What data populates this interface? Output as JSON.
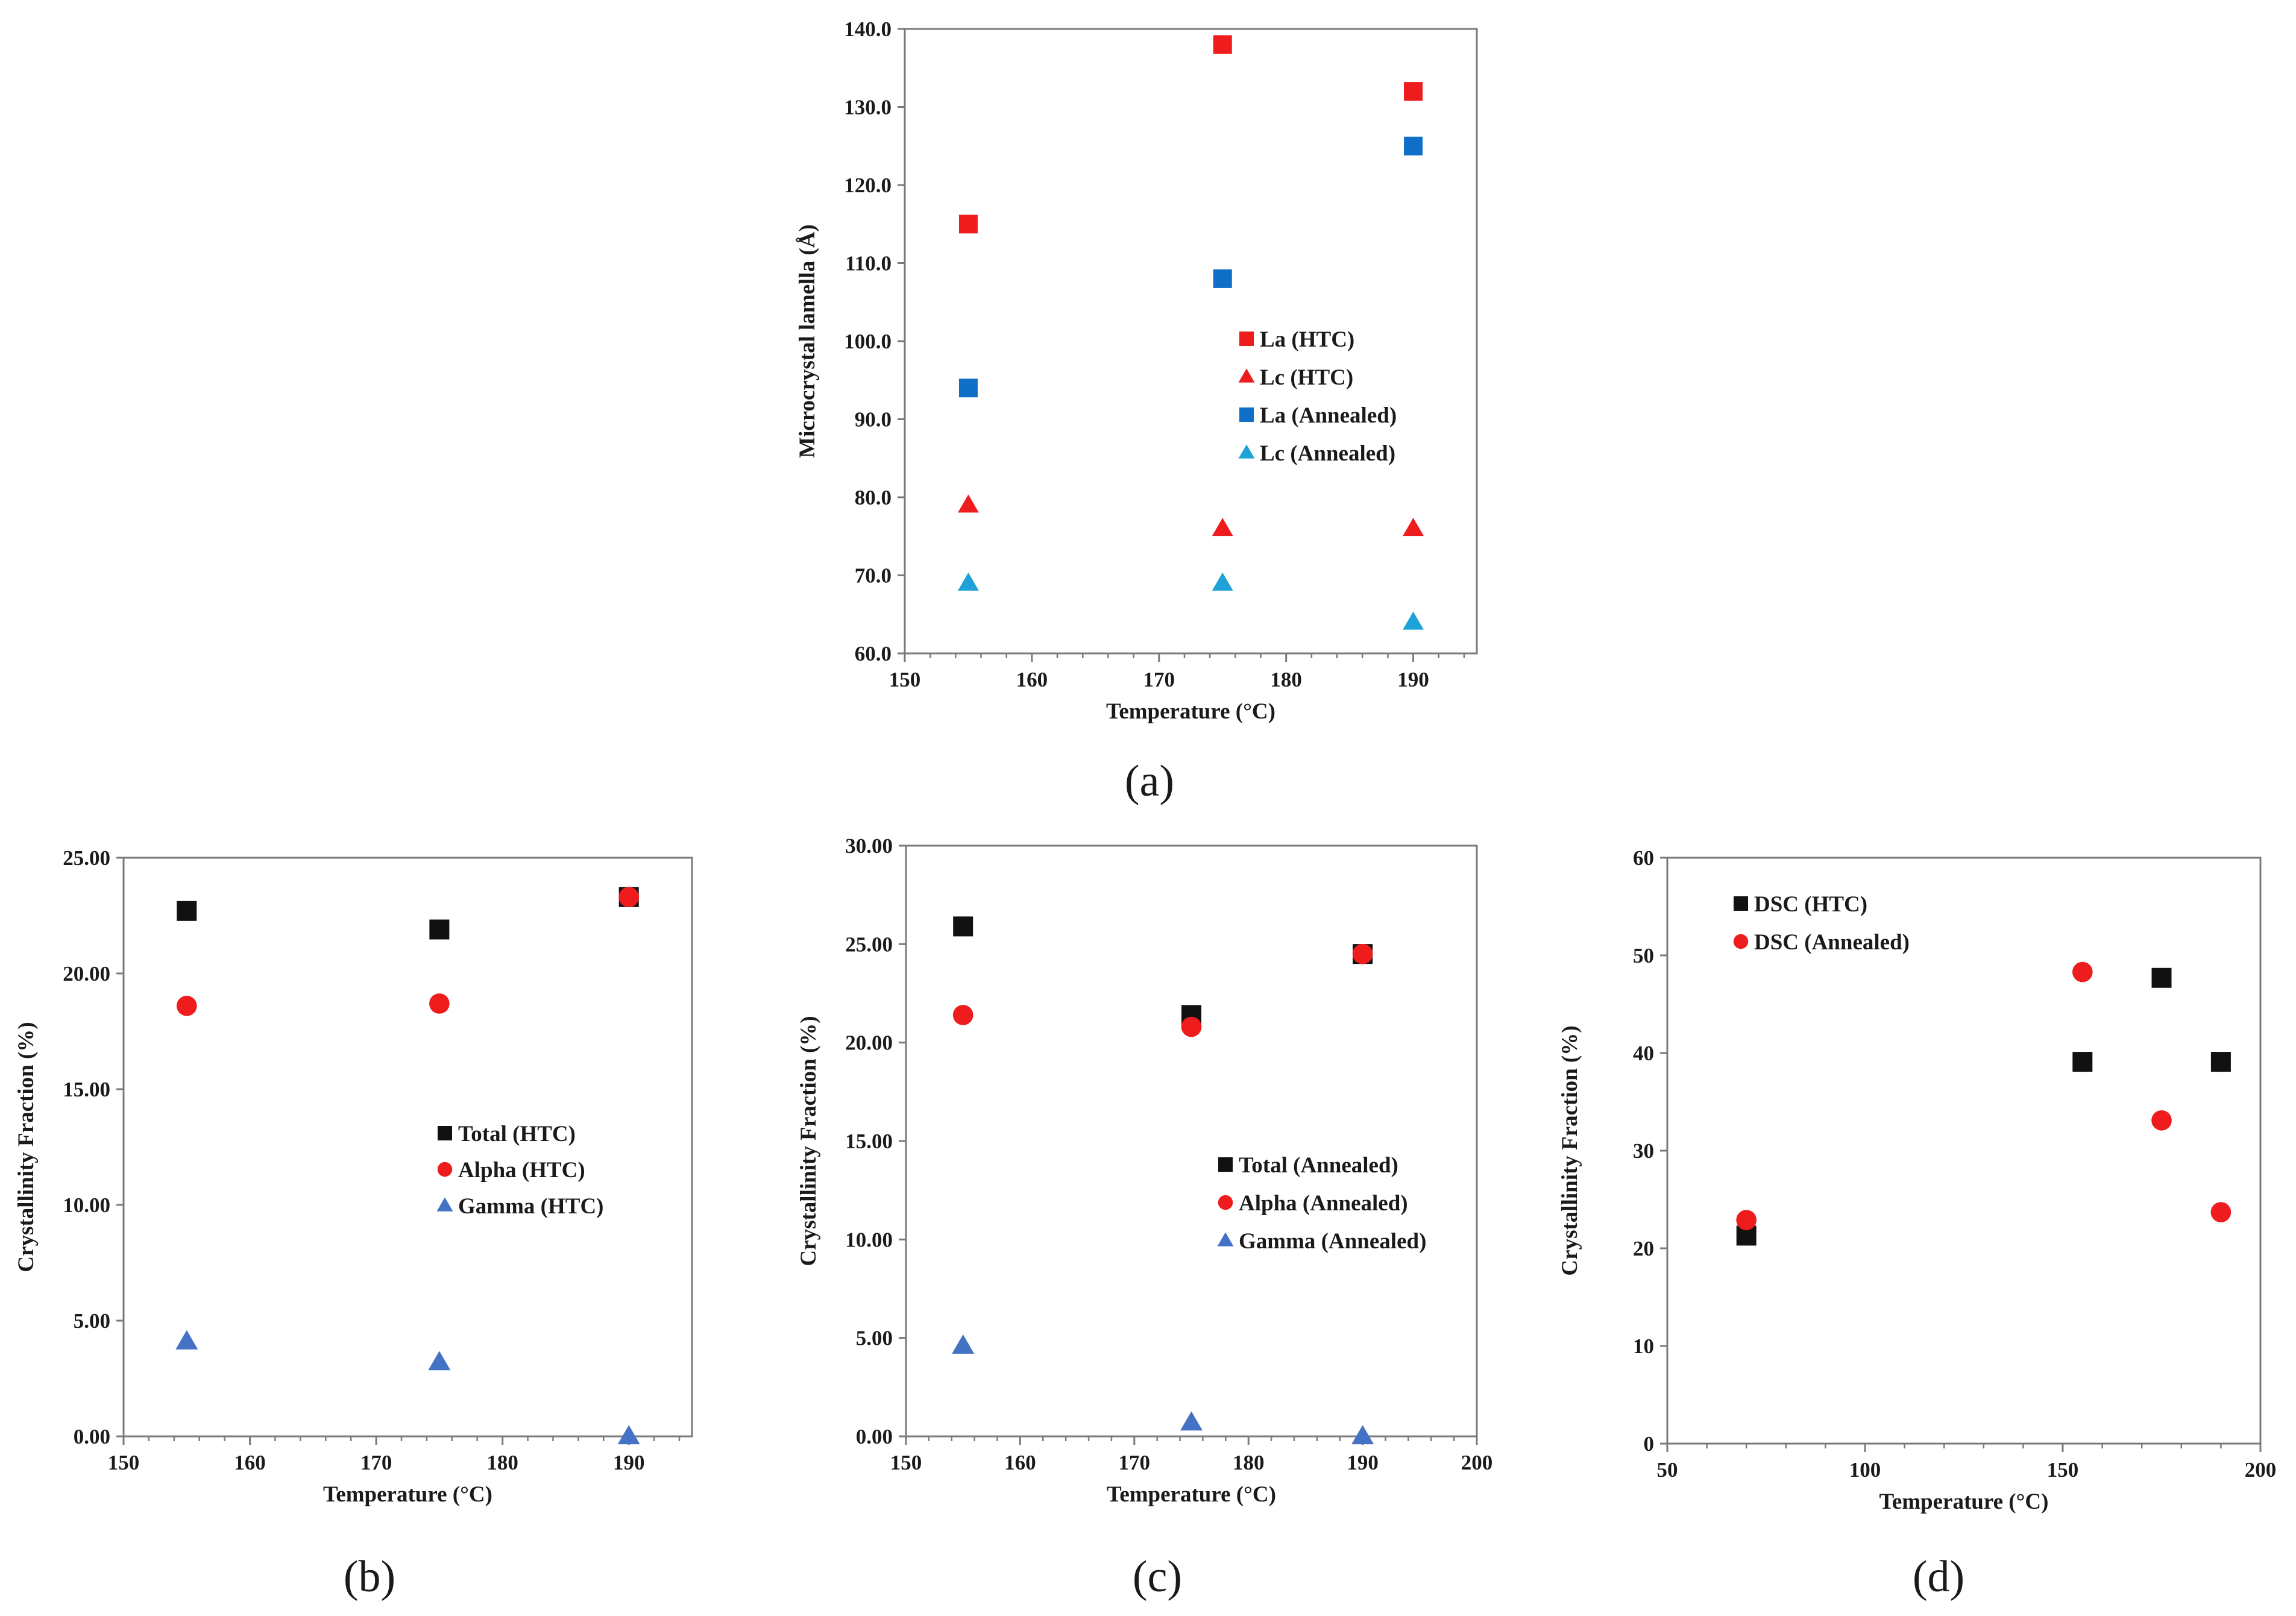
{
  "chart_data": [
    {
      "id": "a",
      "type": "scatter",
      "panel_label": "(a)",
      "xlabel": "Temperature (°C)",
      "ylabel": "Microcrystal lamella (Å)",
      "xlim": [
        150,
        195
      ],
      "ylim": [
        60,
        140
      ],
      "xticks": [
        150,
        160,
        170,
        180,
        190
      ],
      "xtick_labels": [
        "150",
        "160",
        "170",
        "180",
        "190"
      ],
      "yticks": [
        60,
        70,
        80,
        90,
        100,
        110,
        120,
        130,
        140
      ],
      "ytick_labels": [
        "60.0",
        "70.0",
        "80.0",
        "90.0",
        "100.0",
        "110.0",
        "120.0",
        "130.0",
        "140.0"
      ],
      "legend_position": "center",
      "series": [
        {
          "name": "La (HTC)",
          "marker": "square",
          "color": "#ee1c1c",
          "x": [
            155,
            175,
            190
          ],
          "y": [
            115,
            138,
            132
          ]
        },
        {
          "name": "Lc (HTC)",
          "marker": "triangle",
          "color": "#ee1c1c",
          "x": [
            155,
            175,
            190
          ],
          "y": [
            79,
            76,
            76
          ]
        },
        {
          "name": "La (Annealed)",
          "marker": "square",
          "color": "#0f6fc6",
          "x": [
            155,
            175,
            190
          ],
          "y": [
            94,
            108,
            125
          ]
        },
        {
          "name": "Lc (Annealed)",
          "marker": "triangle",
          "color": "#1fa2d8",
          "x": [
            155,
            175,
            190
          ],
          "y": [
            69,
            69,
            64
          ]
        }
      ]
    },
    {
      "id": "b",
      "type": "scatter",
      "panel_label": "(b)",
      "xlabel": "Temperature (°C)",
      "ylabel": "Crystallinity Fraction (%)",
      "xlim": [
        150,
        195
      ],
      "ylim": [
        0,
        25
      ],
      "xticks": [
        150,
        160,
        170,
        180,
        190
      ],
      "xtick_labels": [
        "150",
        "160",
        "170",
        "180",
        "190"
      ],
      "yticks": [
        0,
        5,
        10,
        15,
        20,
        25
      ],
      "ytick_labels": [
        "0.00",
        "5.00",
        "10.00",
        "15.00",
        "20.00",
        "25.00"
      ],
      "legend_position": "center-right",
      "series": [
        {
          "name": "Total (HTC)",
          "marker": "square",
          "color": "#111111",
          "x": [
            155,
            175,
            190
          ],
          "y": [
            22.7,
            21.9,
            23.3
          ]
        },
        {
          "name": "Alpha (HTC)",
          "marker": "circle",
          "color": "#ee1c1c",
          "x": [
            155,
            175,
            190
          ],
          "y": [
            18.6,
            18.7,
            23.3
          ]
        },
        {
          "name": "Gamma (HTC)",
          "marker": "triangle",
          "color": "#4472c4",
          "x": [
            155,
            175,
            190
          ],
          "y": [
            4.1,
            3.2,
            0.0
          ]
        }
      ]
    },
    {
      "id": "c",
      "type": "scatter",
      "panel_label": "(c)",
      "xlabel": "Temperature (°C)",
      "ylabel": "Crystallinity Fraction (%)",
      "xlim": [
        150,
        200
      ],
      "ylim": [
        0,
        30
      ],
      "xticks": [
        150,
        160,
        170,
        180,
        190,
        200
      ],
      "xtick_labels": [
        "150",
        "160",
        "170",
        "180",
        "190",
        "200"
      ],
      "yticks": [
        0,
        5,
        10,
        15,
        20,
        25,
        30
      ],
      "ytick_labels": [
        "0.00",
        "5.00",
        "10.00",
        "15.00",
        "20.00",
        "25.00",
        "30.00"
      ],
      "legend_position": "bottom-right",
      "series": [
        {
          "name": "Total (Annealed)",
          "marker": "square",
          "color": "#111111",
          "x": [
            155,
            175,
            190
          ],
          "y": [
            25.9,
            21.4,
            24.5
          ]
        },
        {
          "name": "Alpha (Annealed)",
          "marker": "circle",
          "color": "#ee1c1c",
          "x": [
            155,
            175,
            190
          ],
          "y": [
            21.4,
            20.8,
            24.5
          ]
        },
        {
          "name": "Gamma (Annealed)",
          "marker": "triangle",
          "color": "#4472c4",
          "x": [
            155,
            175,
            190
          ],
          "y": [
            4.6,
            0.7,
            0.0
          ]
        }
      ]
    },
    {
      "id": "d",
      "type": "scatter",
      "panel_label": "(d)",
      "xlabel": "Temperature (°C)",
      "ylabel": "Crystallinity Fraction (%)",
      "xlim": [
        50,
        200
      ],
      "ylim": [
        0,
        60
      ],
      "xticks": [
        50,
        100,
        150,
        200
      ],
      "xtick_labels": [
        "50",
        "100",
        "150",
        "200"
      ],
      "yticks": [
        0,
        10,
        20,
        30,
        40,
        50,
        60
      ],
      "ytick_labels": [
        "0",
        "10",
        "20",
        "30",
        "40",
        "50",
        "60"
      ],
      "legend_position": "top-left",
      "series": [
        {
          "name": "DSC (HTC)",
          "marker": "square",
          "color": "#111111",
          "x": [
            70,
            155,
            175,
            190
          ],
          "y": [
            21.3,
            39.1,
            47.7,
            39.1
          ]
        },
        {
          "name": "DSC (Annealed)",
          "marker": "circle",
          "color": "#ee1c1c",
          "x": [
            70,
            155,
            175,
            190
          ],
          "y": [
            22.9,
            48.3,
            33.1,
            23.7
          ]
        }
      ]
    }
  ]
}
